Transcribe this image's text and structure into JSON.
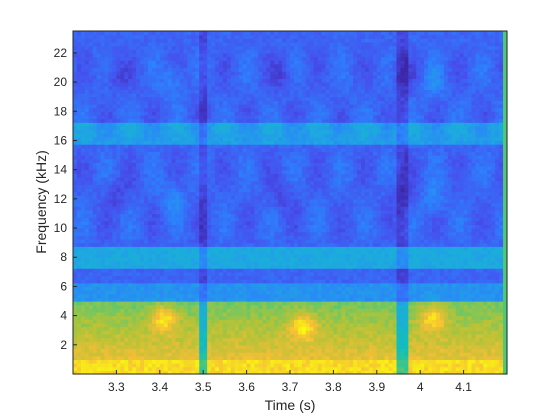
{
  "chart_data": {
    "type": "heatmap",
    "title": "",
    "xlabel": "Time (s)",
    "ylabel": "Frequency (kHz)",
    "xlim": [
      3.2,
      4.2
    ],
    "ylim": [
      0,
      23.5
    ],
    "x_ticks": [
      3.3,
      3.4,
      3.5,
      3.6,
      3.7,
      3.8,
      3.9,
      4,
      4.1
    ],
    "x_tick_labels": [
      "3.3",
      "3.4",
      "3.5",
      "3.6",
      "3.7",
      "3.8",
      "3.9",
      "4",
      "4.1"
    ],
    "y_ticks": [
      2,
      4,
      6,
      8,
      10,
      12,
      14,
      16,
      18,
      20,
      22
    ],
    "y_tick_labels": [
      "2",
      "4",
      "6",
      "8",
      "10",
      "12",
      "14",
      "16",
      "18",
      "20",
      "22"
    ],
    "colormap": "parula",
    "colorbar": false,
    "grid": false,
    "features": {
      "low_frequency_energy_band_khz": [
        0,
        5
      ],
      "horizontal_band_khz": [
        8,
        16.5
      ],
      "vertical_low_energy_lines_s": [
        3.5,
        3.96
      ],
      "high_energy_patches": [
        {
          "t": 3.41,
          "f": 3.8
        },
        {
          "t": 4.03,
          "f": 3.9
        },
        {
          "t": 3.73,
          "f": 3.3
        }
      ]
    }
  }
}
